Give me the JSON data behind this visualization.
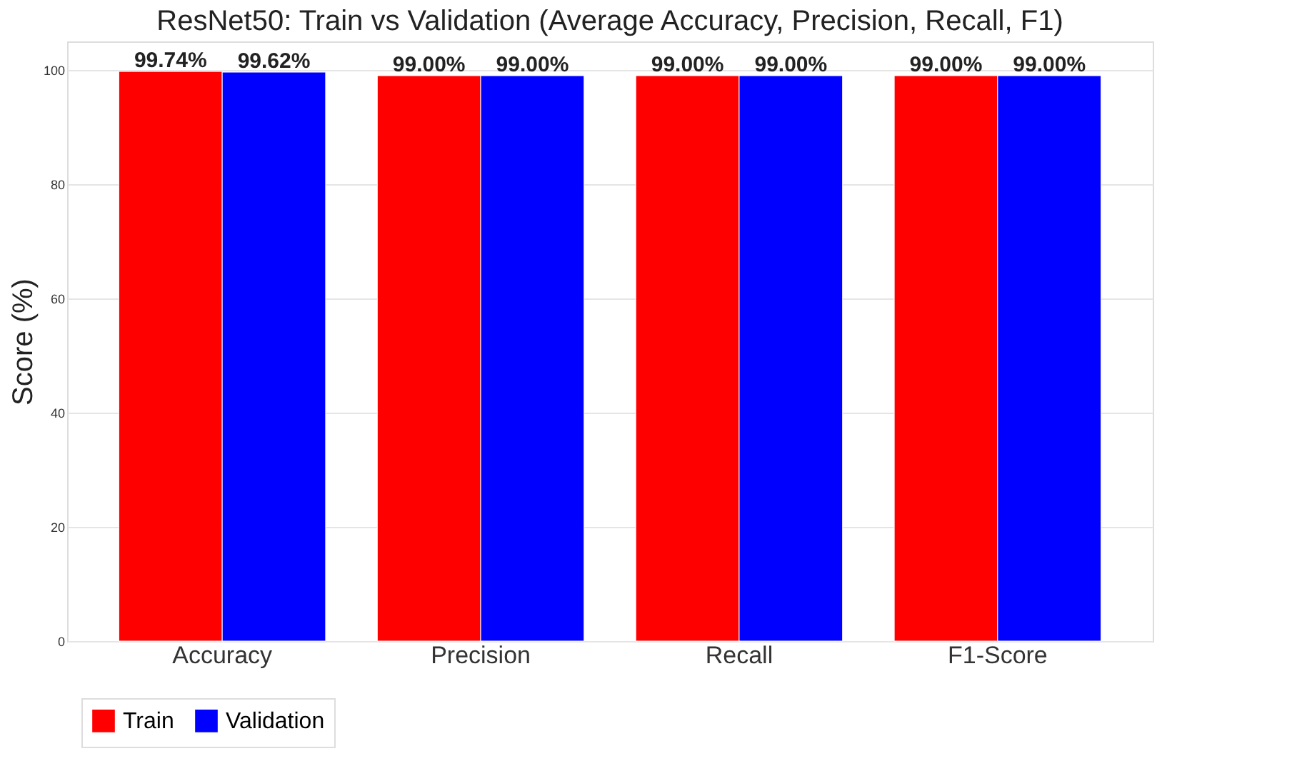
{
  "chart_data": {
    "type": "bar",
    "title": "ResNet50: Train vs Validation (Average Accuracy, Precision, Recall, F1)",
    "ylabel": "Score (%)",
    "categories": [
      "Accuracy",
      "Precision",
      "Recall",
      "F1-Score"
    ],
    "series": [
      {
        "name": "Train",
        "color": "#ff0000",
        "values": [
          99.74,
          99.0,
          99.0,
          99.0
        ],
        "value_labels": [
          "99.74%",
          "99.00%",
          "99.00%",
          "99.00%"
        ]
      },
      {
        "name": "Validation",
        "color": "#0000ff",
        "values": [
          99.62,
          99.0,
          99.0,
          99.0
        ],
        "value_labels": [
          "99.62%",
          "99.00%",
          "99.00%",
          "99.00%"
        ]
      }
    ],
    "ylim": [
      0,
      105
    ],
    "yticks": [
      0,
      20,
      40,
      60,
      80,
      100
    ],
    "grid": "y",
    "legend": "bottom left"
  }
}
